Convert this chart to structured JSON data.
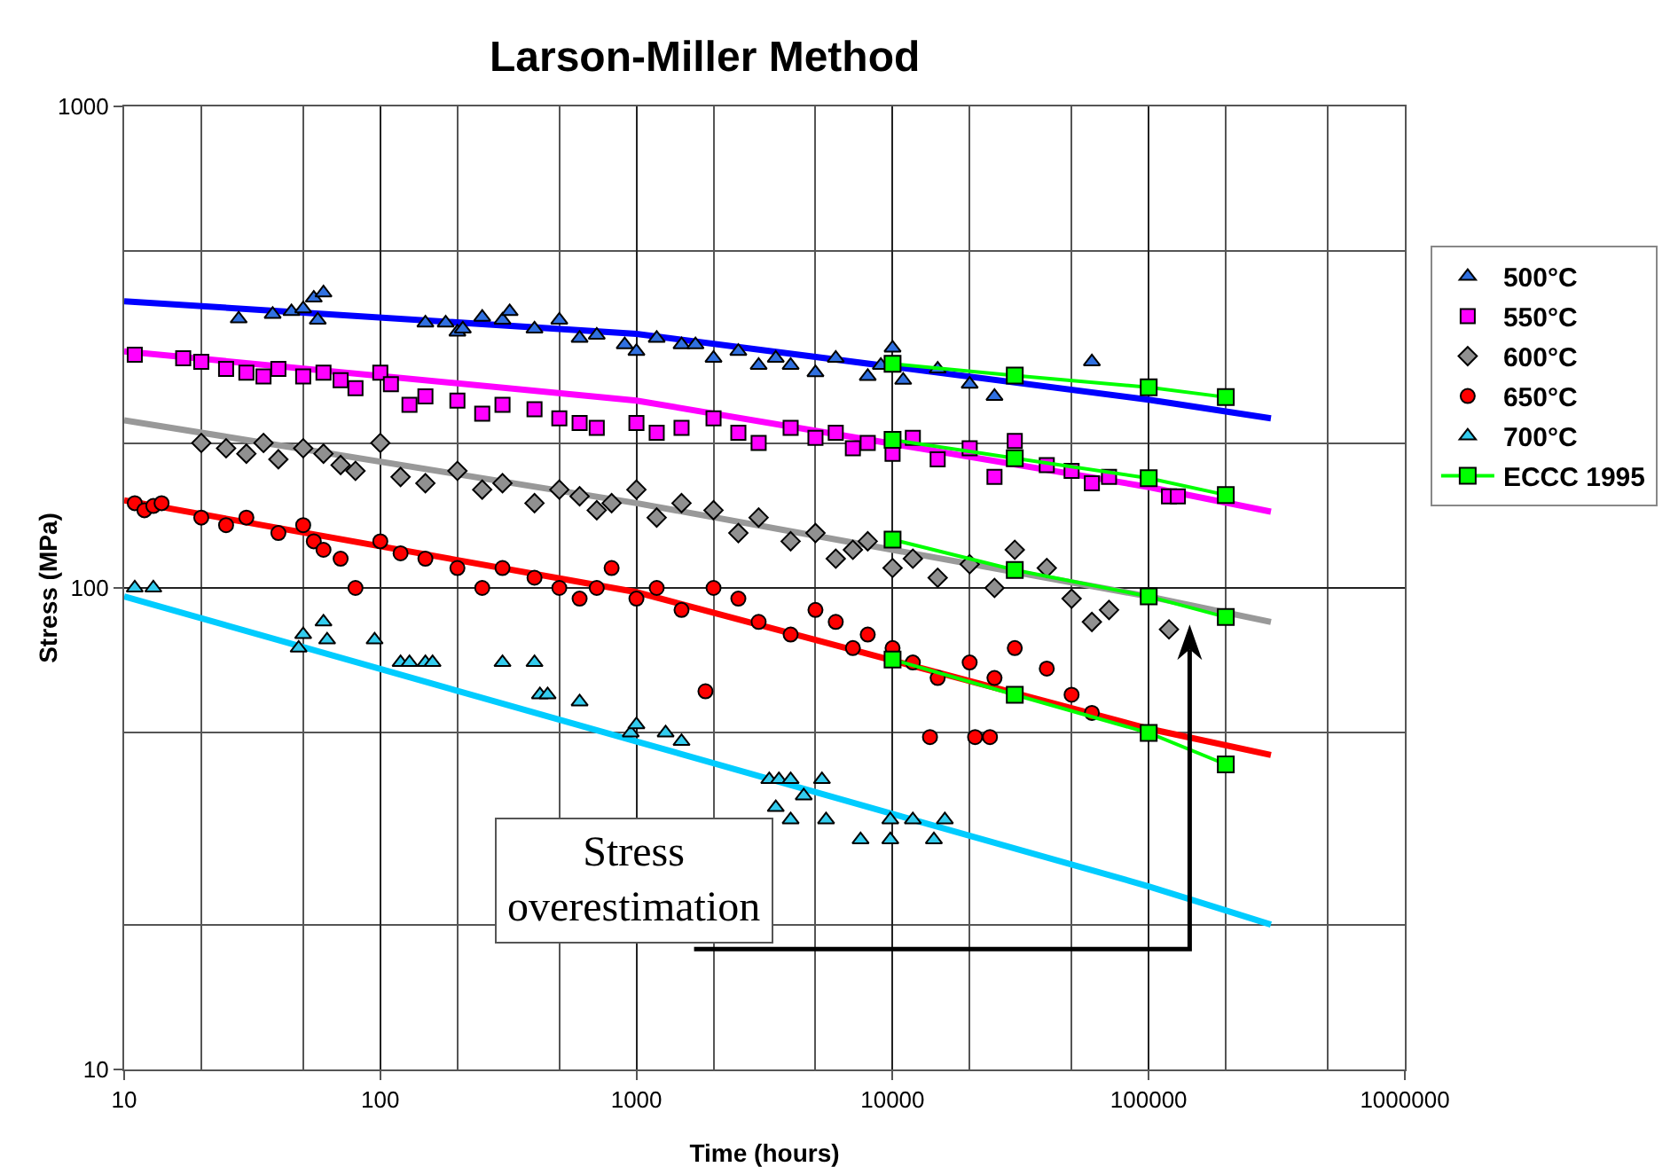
{
  "chart_data": {
    "type": "scatter",
    "title": "Larson-Miller Method",
    "xlabel": "Time (hours)",
    "ylabel": "Stress (MPa)",
    "log": "xy",
    "grid": true,
    "legend": "right",
    "xlim": [
      10,
      1000000
    ],
    "xticks": [
      10,
      100,
      1000,
      10000,
      100000,
      1000000
    ],
    "ylim": [
      10,
      1000
    ],
    "yticks": [
      10,
      100,
      1000
    ],
    "annotations": [
      "Stress overestimation"
    ],
    "series": [
      {
        "name": "500°C",
        "marker": "triangle",
        "color": "#3070e0",
        "x": [
          28,
          38,
          45,
          50,
          55,
          57,
          60,
          150,
          180,
          200,
          210,
          250,
          300,
          320,
          400,
          500,
          600,
          700,
          900,
          1000,
          1200,
          1500,
          1700,
          2000,
          2500,
          3000,
          3500,
          4000,
          5000,
          6000,
          8000,
          9000,
          10000,
          11000,
          15000,
          20000,
          25000,
          60000
        ],
        "values": [
          362,
          370,
          375,
          380,
          400,
          360,
          410,
          355,
          355,
          340,
          345,
          365,
          360,
          375,
          345,
          360,
          330,
          335,
          320,
          310,
          330,
          320,
          320,
          300,
          310,
          290,
          300,
          290,
          280,
          300,
          275,
          290,
          315,
          270,
          285,
          265,
          250,
          295
        ]
      },
      {
        "name": "550°C",
        "marker": "square",
        "color": "#ff00ff",
        "x": [
          11,
          17,
          20,
          25,
          30,
          35,
          40,
          50,
          60,
          70,
          80,
          100,
          110,
          130,
          150,
          200,
          250,
          300,
          400,
          500,
          600,
          700,
          1000,
          1200,
          1500,
          2000,
          2500,
          3000,
          4000,
          5000,
          6000,
          7000,
          8000,
          10000,
          12000,
          15000,
          20000,
          25000,
          30000,
          40000,
          50000,
          60000,
          70000,
          120000,
          130000
        ],
        "values": [
          305,
          300,
          295,
          285,
          280,
          275,
          285,
          275,
          280,
          270,
          260,
          280,
          265,
          240,
          250,
          245,
          230,
          240,
          235,
          225,
          220,
          215,
          220,
          210,
          215,
          225,
          210,
          200,
          215,
          205,
          210,
          195,
          200,
          190,
          205,
          185,
          195,
          170,
          202,
          180,
          175,
          165,
          170,
          155,
          155
        ]
      },
      {
        "name": "600°C",
        "marker": "diamond",
        "color": "#909090",
        "x": [
          20,
          25,
          30,
          35,
          40,
          50,
          60,
          70,
          80,
          100,
          120,
          150,
          200,
          250,
          300,
          400,
          500,
          600,
          700,
          800,
          1000,
          1200,
          1500,
          2000,
          2500,
          3000,
          4000,
          5000,
          6000,
          7000,
          8000,
          10000,
          12000,
          15000,
          20000,
          25000,
          30000,
          40000,
          50000,
          60000,
          70000,
          120000
        ],
        "values": [
          200,
          195,
          190,
          200,
          185,
          195,
          190,
          180,
          175,
          200,
          170,
          165,
          175,
          160,
          165,
          150,
          160,
          155,
          145,
          150,
          160,
          140,
          150,
          145,
          130,
          140,
          125,
          130,
          115,
          120,
          125,
          110,
          115,
          105,
          112,
          100,
          120,
          110,
          95,
          85,
          90,
          82
        ]
      },
      {
        "name": "650°C",
        "marker": "circle",
        "color": "#ff0000",
        "x": [
          11,
          12,
          13,
          14,
          20,
          25,
          30,
          40,
          50,
          55,
          60,
          70,
          80,
          100,
          120,
          150,
          200,
          250,
          300,
          400,
          500,
          600,
          700,
          800,
          1000,
          1200,
          1500,
          1860,
          2000,
          2500,
          3000,
          4000,
          5000,
          6000,
          7000,
          8000,
          10000,
          12000,
          14000,
          15000,
          20000,
          21000,
          24000,
          25000,
          30000,
          40000,
          50000,
          60000
        ],
        "values": [
          150,
          145,
          148,
          150,
          140,
          135,
          140,
          130,
          135,
          125,
          120,
          115,
          100,
          125,
          118,
          115,
          110,
          100,
          110,
          105,
          100,
          95,
          100,
          110,
          95,
          100,
          90,
          61,
          100,
          95,
          85,
          80,
          90,
          85,
          75,
          80,
          75,
          70,
          49,
          65,
          70,
          49,
          49,
          65,
          75,
          68,
          60,
          55
        ]
      },
      {
        "name": "700°C",
        "marker": "triangle",
        "color": "#33ccee",
        "x": [
          11,
          13,
          48,
          50,
          60,
          62,
          95,
          120,
          130,
          150,
          160,
          300,
          400,
          420,
          450,
          600,
          950,
          1000,
          1300,
          1500,
          3300,
          3500,
          3600,
          4000,
          4000,
          4500,
          5300,
          5500,
          7500,
          9800,
          9800,
          12000,
          14500,
          16000
        ],
        "values": [
          100,
          100,
          75,
          80,
          85,
          78,
          78,
          70,
          70,
          70,
          70,
          70,
          70,
          60,
          60,
          58,
          50,
          52,
          50,
          48,
          40,
          35,
          40,
          40,
          33,
          37,
          40,
          33,
          30,
          30,
          33,
          33,
          30,
          33
        ]
      },
      {
        "type": "line",
        "marker": "none",
        "color": "#0000ff",
        "x": [
          10,
          1000,
          100000,
          300000
        ],
        "values": [
          394,
          337,
          246,
          225
        ]
      },
      {
        "type": "line",
        "marker": "none",
        "color": "#ff00ff",
        "x": [
          10,
          1000,
          100000,
          300000
        ],
        "values": [
          310,
          245,
          162,
          144
        ]
      },
      {
        "type": "line",
        "marker": "none",
        "color": "#999999",
        "x": [
          10,
          1000,
          100000,
          300000
        ],
        "values": [
          223,
          150,
          96,
          85
        ]
      },
      {
        "type": "line",
        "marker": "none",
        "color": "#ff0000",
        "x": [
          10,
          1000,
          100000,
          300000
        ],
        "values": [
          152,
          98,
          51,
          45
        ]
      },
      {
        "type": "line",
        "marker": "none",
        "color": "#00ccff",
        "x": [
          10,
          1000,
          100000,
          300000
        ],
        "values": [
          96,
          48,
          24,
          20
        ]
      },
      {
        "name": "ECCC 1995",
        "type": "line",
        "marker": "square",
        "color": "#00ff00",
        "x": [
          10000,
          30000,
          100000,
          200000
        ],
        "values": [
          292,
          276,
          261,
          249
        ]
      },
      {
        "type": "line",
        "marker": "square",
        "color": "#00ff00",
        "x": [
          10000,
          30000,
          100000,
          200000
        ],
        "values": [
          203,
          186,
          169,
          156
        ]
      },
      {
        "type": "line",
        "marker": "square",
        "color": "#00ff00",
        "x": [
          10000,
          30000,
          100000,
          200000
        ],
        "values": [
          126,
          109,
          96,
          87
        ]
      },
      {
        "type": "line",
        "marker": "square",
        "color": "#00ff00",
        "x": [
          10000,
          30000,
          100000,
          200000
        ],
        "values": [
          71,
          60,
          50,
          43
        ]
      }
    ]
  }
}
